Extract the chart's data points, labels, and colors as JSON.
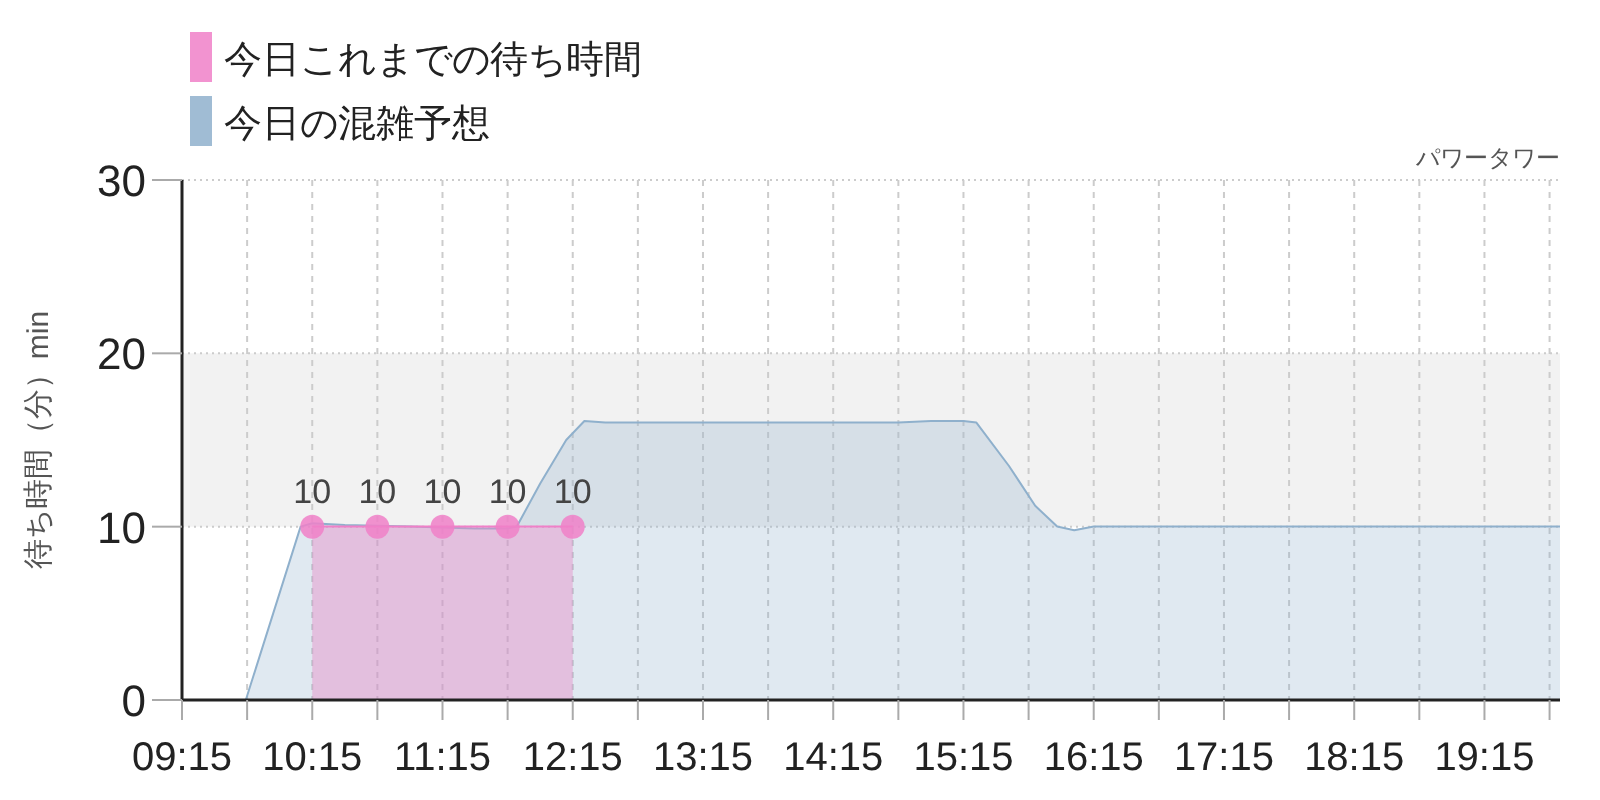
{
  "chart_data": {
    "type": "area",
    "ylabel": "待ち時間（分）min",
    "annotations": [
      "パワータワー"
    ],
    "legend": "top left",
    "xlim": [
      9.25,
      19.83
    ],
    "ylim": [
      0,
      30
    ],
    "yticks": [
      0,
      10,
      20,
      30
    ],
    "xticks": [
      {
        "value": 9.25,
        "label": "09:15"
      },
      {
        "value": 9.75,
        "label": null
      },
      {
        "value": 10.25,
        "label": "10:15"
      },
      {
        "value": 10.75,
        "label": null
      },
      {
        "value": 11.25,
        "label": "11:15"
      },
      {
        "value": 11.75,
        "label": null
      },
      {
        "value": 12.25,
        "label": "12:15"
      },
      {
        "value": 12.75,
        "label": null
      },
      {
        "value": 13.25,
        "label": "13:15"
      },
      {
        "value": 13.75,
        "label": null
      },
      {
        "value": 14.25,
        "label": "14:15"
      },
      {
        "value": 14.75,
        "label": null
      },
      {
        "value": 15.25,
        "label": "15:15"
      },
      {
        "value": 15.75,
        "label": null
      },
      {
        "value": 16.25,
        "label": "16:15"
      },
      {
        "value": 16.75,
        "label": null
      },
      {
        "value": 17.25,
        "label": "17:15"
      },
      {
        "value": 17.75,
        "label": null
      },
      {
        "value": 18.25,
        "label": "18:15"
      },
      {
        "value": 18.75,
        "label": null
      },
      {
        "value": 19.25,
        "label": "19:15"
      },
      {
        "value": 19.75,
        "label": null
      }
    ],
    "grid": true,
    "bands": [
      {
        "axis": "y",
        "from": 10,
        "to": 20,
        "color": "#f2f2f2"
      }
    ],
    "series": [
      {
        "name": "今日これまでの待ち時間",
        "color": "#f080c8",
        "marker": "circle",
        "x": [
          10.25,
          10.75,
          11.25,
          11.75,
          12.25
        ],
        "values": [
          10,
          10,
          10,
          10,
          10
        ],
        "value_labels": [
          "10",
          "10",
          "10",
          "10",
          "10"
        ]
      },
      {
        "name": "今日の混雑予想",
        "color": "#8fb0cc",
        "marker": "none",
        "x": [
          9.25,
          9.5,
          9.74,
          9.95,
          10.16,
          10.25,
          10.5,
          11.0,
          11.5,
          11.75,
          11.82,
          12.0,
          12.2,
          12.34,
          12.5,
          13.0,
          14.0,
          14.75,
          15.0,
          15.25,
          15.35,
          15.6,
          15.8,
          15.97,
          16.1,
          16.25,
          17.0,
          18.0,
          19.0,
          19.83
        ],
        "values": [
          0,
          0,
          0,
          5,
          10,
          10.2,
          10.1,
          10,
          9.9,
          9.9,
          10,
          12.5,
          15,
          16.1,
          16,
          16,
          16,
          16,
          16.1,
          16.1,
          16,
          13.5,
          11.2,
          10,
          9.8,
          10,
          10,
          10,
          10,
          10
        ]
      }
    ]
  }
}
